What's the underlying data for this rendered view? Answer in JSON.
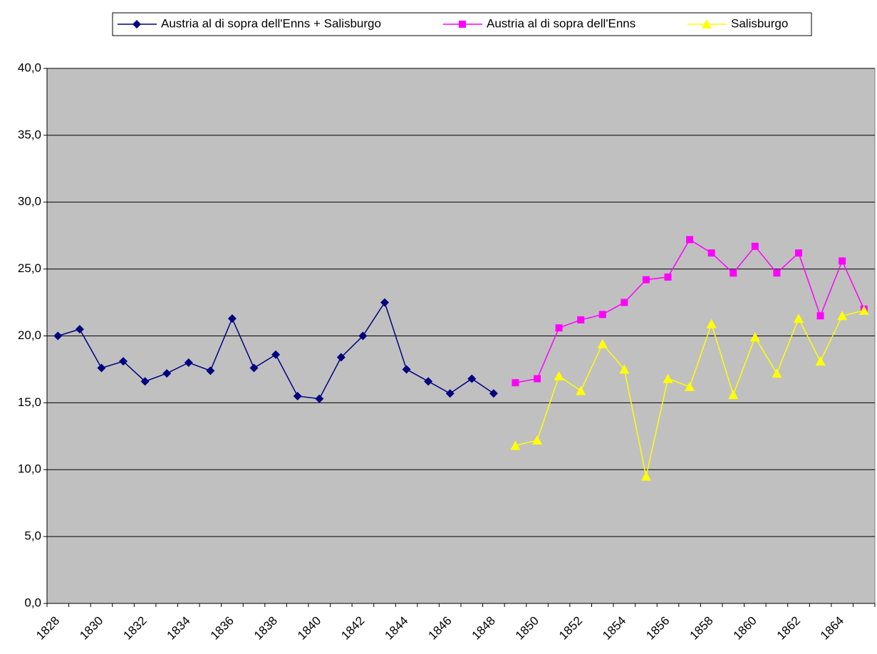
{
  "chart_data": {
    "type": "line",
    "categories": [
      "1828",
      null,
      "1830",
      null,
      "1832",
      null,
      "1834",
      null,
      "1836",
      null,
      "1838",
      null,
      "1840",
      null,
      "1842",
      null,
      "1844",
      null,
      "1846",
      null,
      "1848",
      null,
      "1850",
      null,
      "1852",
      null,
      "1854",
      null,
      "1856",
      null,
      "1858",
      null,
      "1860",
      null,
      "1862",
      null,
      "1864",
      null
    ],
    "series": [
      {
        "name": "Austria al di sopra dell'Enns + Salisburgo",
        "color": "#000080",
        "marker": "diamond",
        "values": [
          20.0,
          20.5,
          17.6,
          18.1,
          16.6,
          17.2,
          18.0,
          17.4,
          21.3,
          17.6,
          18.6,
          15.5,
          15.3,
          18.4,
          20.0,
          22.5,
          17.5,
          16.6,
          15.7,
          16.8,
          15.7,
          null,
          null,
          null,
          null,
          null,
          null,
          null,
          null,
          null,
          null,
          null,
          null,
          null,
          null,
          null,
          null,
          null
        ]
      },
      {
        "name": "Austria al di sopra dell'Enns",
        "color": "#ff00ff",
        "marker": "square",
        "values": [
          null,
          null,
          null,
          null,
          null,
          null,
          null,
          null,
          null,
          null,
          null,
          null,
          null,
          null,
          null,
          null,
          null,
          null,
          null,
          null,
          null,
          16.5,
          16.8,
          20.6,
          21.2,
          21.6,
          22.5,
          24.2,
          24.4,
          27.2,
          26.2,
          24.7,
          26.7,
          24.7,
          26.2,
          21.5,
          25.6,
          22.0
        ]
      },
      {
        "name": "Salisburgo",
        "color": "#ffff00",
        "marker": "triangle",
        "values": [
          null,
          null,
          null,
          null,
          null,
          null,
          null,
          null,
          null,
          null,
          null,
          null,
          null,
          null,
          null,
          null,
          null,
          null,
          null,
          null,
          null,
          11.8,
          12.2,
          17.0,
          15.9,
          19.4,
          17.5,
          9.5,
          16.8,
          16.2,
          20.9,
          15.6,
          19.9,
          17.2,
          21.3,
          18.1,
          21.5,
          21.9
        ]
      }
    ],
    "ylim": [
      0,
      40
    ],
    "yticks": [
      {
        "value": 0,
        "label": "0,0"
      },
      {
        "value": 5,
        "label": "5,0"
      },
      {
        "value": 10,
        "label": "10,0"
      },
      {
        "value": 15,
        "label": "15,0"
      },
      {
        "value": 20,
        "label": "20,0"
      },
      {
        "value": 25,
        "label": "25,0"
      },
      {
        "value": 30,
        "label": "30,0"
      },
      {
        "value": 35,
        "label": "35,0"
      },
      {
        "value": 40,
        "label": "40,0"
      }
    ],
    "grid": true,
    "legend": "top",
    "background": "#c0c0c0"
  }
}
